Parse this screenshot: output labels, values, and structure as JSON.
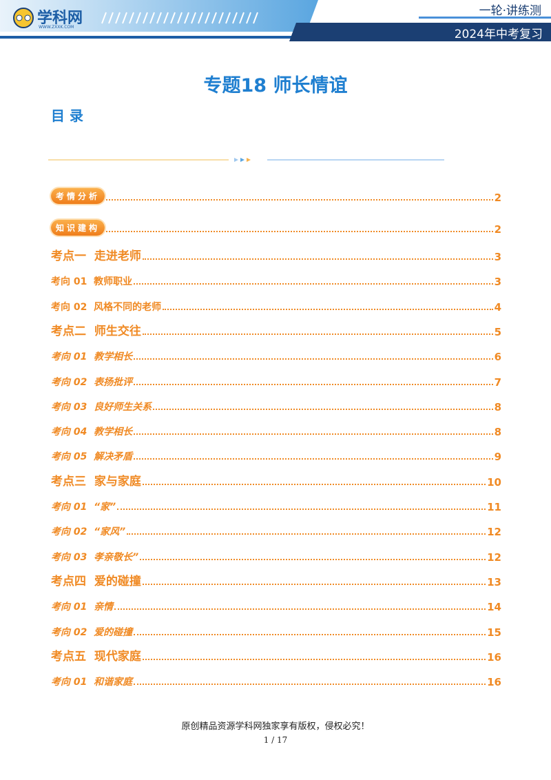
{
  "header": {
    "logo": "学科网",
    "logo_url": "WWW.ZXXK.COM",
    "series": "一轮·讲练测",
    "course": "2024年中考复习"
  },
  "title": "专题18  师长情谊",
  "toc_heading": "目 录",
  "badges": [
    {
      "label": "考情分析",
      "page": "2"
    },
    {
      "label": "知识建构",
      "page": "2"
    }
  ],
  "sections": [
    {
      "title": "考点一  走进老师",
      "page": "3",
      "items": [
        {
          "label": "考向 01  教师职业",
          "page": "3"
        },
        {
          "label": "考向 02  风格不同的老师",
          "page": "4"
        }
      ]
    },
    {
      "title": "考点二  师生交往",
      "page": "5",
      "items": [
        {
          "label": "考向 01  教学相长",
          "page": "6"
        },
        {
          "label": "考向 02  表扬批评",
          "page": "7"
        },
        {
          "label": "考向 03  良好师生关系",
          "page": "8"
        },
        {
          "label": "考向 04  教学相长",
          "page": "8"
        },
        {
          "label": "考向 05  解决矛盾",
          "page": "9"
        }
      ]
    },
    {
      "title": "考点三  家与家庭",
      "page": "10",
      "items": [
        {
          "label": "考向 01  “家”",
          "page": "11"
        },
        {
          "label": "考向 02  “家风”",
          "page": "12"
        },
        {
          "label": "考向 03  孝亲敬长”",
          "page": "12"
        }
      ]
    },
    {
      "title": "考点四  爱的碰撞",
      "page": "13",
      "items": [
        {
          "label": "考向 01  亲情",
          "page": "14"
        },
        {
          "label": "考向 02  爱的碰撞",
          "page": "15"
        }
      ]
    },
    {
      "title": "考点五  现代家庭",
      "page": "16",
      "items": [
        {
          "label": "考向 01  和谐家庭",
          "page": "16"
        }
      ]
    }
  ],
  "footer": {
    "copyright": "原创精品资源学科网独家享有版权，侵权必究！",
    "page": "1 / 17"
  }
}
